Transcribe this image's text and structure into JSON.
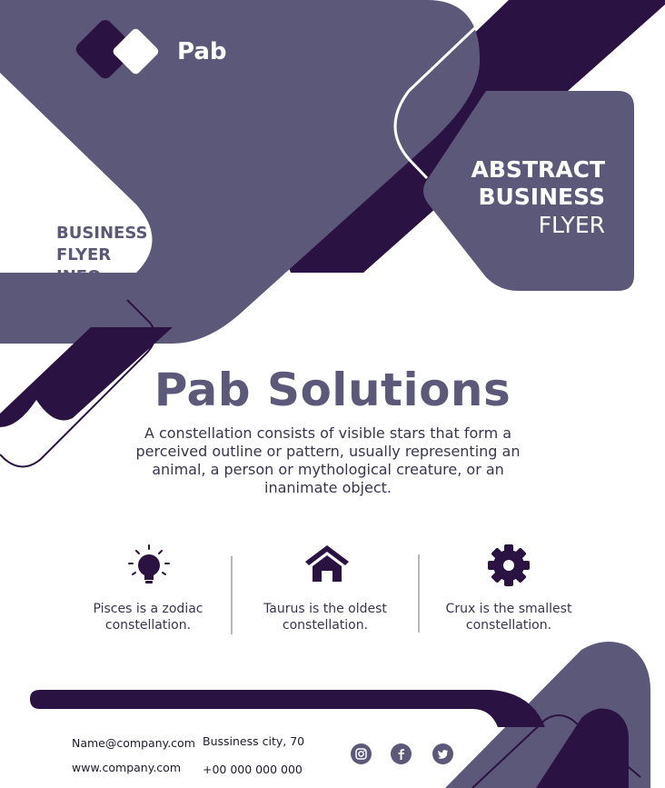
{
  "brand": {
    "name": "Pab"
  },
  "tagline": {
    "line1": "ABSTRACT",
    "line2": "BUSINESS",
    "line3": "FLYER"
  },
  "info": {
    "line1": "BUSINESS",
    "line2": "FLYER",
    "line3": "INFO"
  },
  "headline": "Pab Solutions",
  "description": "A constellation consists of visible stars that form a perceived outline or pattern, usually representing an animal, a person or mythological creature, or an inanimate object.",
  "features": [
    {
      "icon": "lightbulb-icon",
      "line1": "Pisces is a zodiac",
      "line2": "constellation."
    },
    {
      "icon": "home-icon",
      "line1": "Taurus is the oldest",
      "line2": "constellation."
    },
    {
      "icon": "gear-icon",
      "line1": "Crux is the smallest",
      "line2": "constellation."
    }
  ],
  "contact": {
    "email": "Name@company.com",
    "website": "www.company.com",
    "address": "Bussiness city, 70",
    "phone": "+00 000 000 000"
  },
  "social": [
    "instagram-icon",
    "facebook-icon",
    "twitter-icon"
  ],
  "colors": {
    "primary": "#5c587a",
    "dark": "#2a1243",
    "text": "#3a3450",
    "white": "#ffffff"
  }
}
